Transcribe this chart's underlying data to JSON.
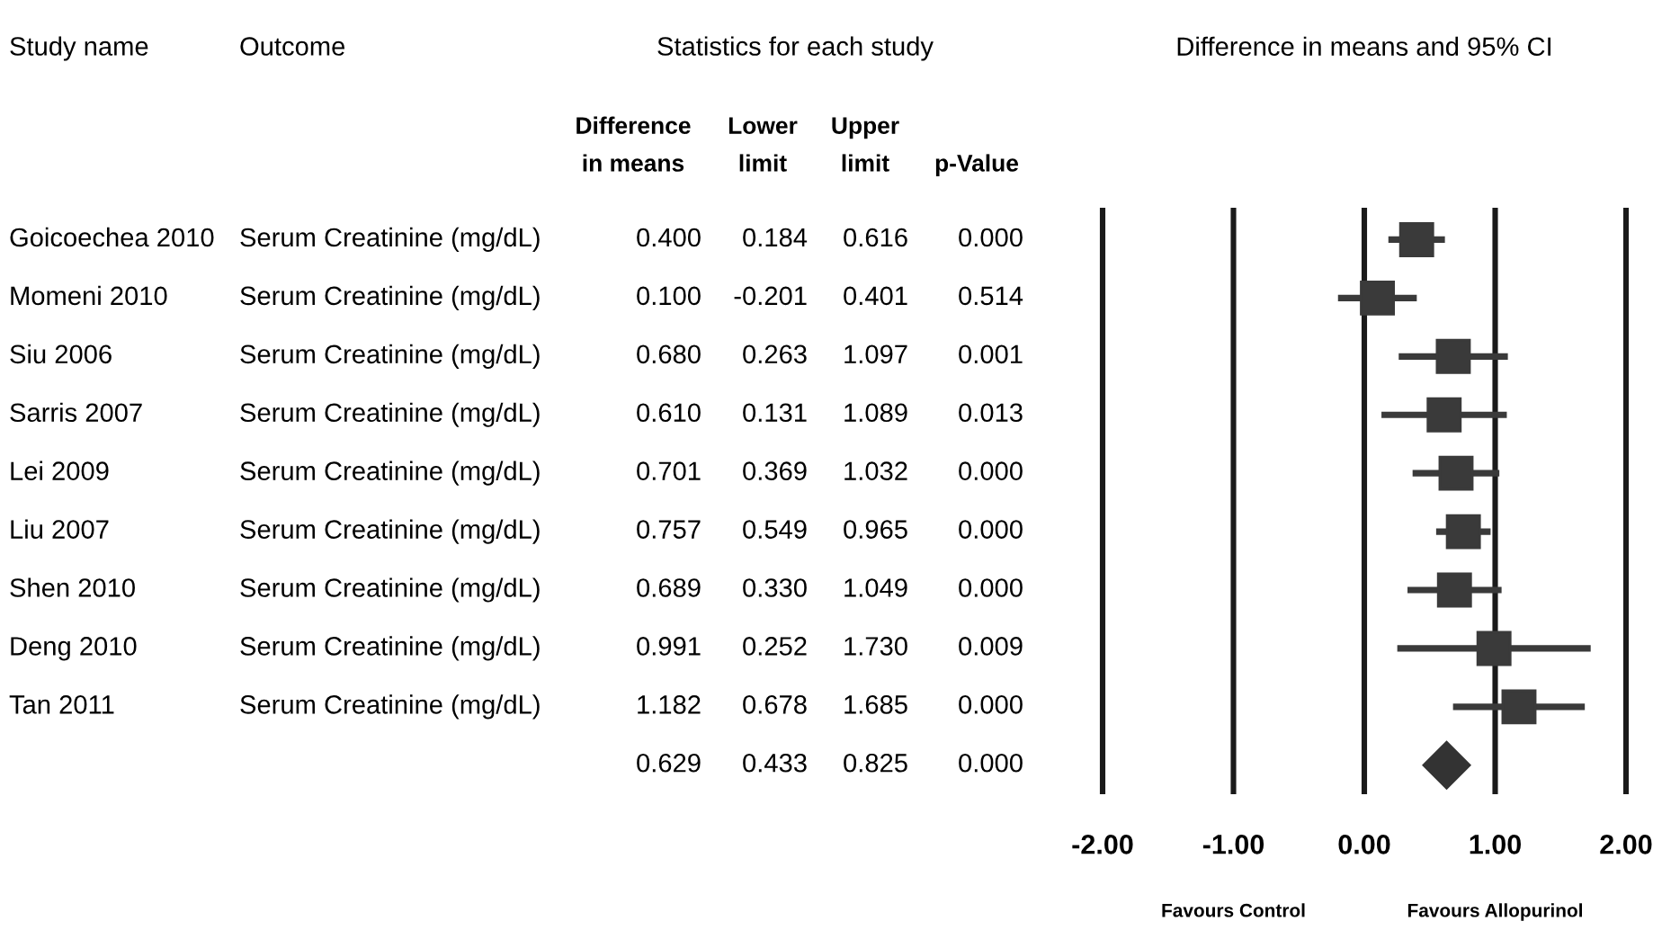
{
  "chart_data": [
    {
      "type": "other",
      "title": "Statistics for each study",
      "annotations": [
        "Study name",
        "Outcome"
      ],
      "y_categories": [
        "Goicoechea 2010",
        "Momeni 2010",
        "Siu 2006",
        "Sarris 2007",
        "Lei 2009",
        "Liu 2007",
        "Shen 2010",
        "Deng 2010",
        "Tan 2011",
        null
      ],
      "y2_categories": [
        "Serum Creatinine (mg/dL)",
        "Serum Creatinine (mg/dL)",
        "Serum Creatinine (mg/dL)",
        "Serum Creatinine (mg/dL)",
        "Serum Creatinine (mg/dL)",
        "Serum Creatinine (mg/dL)",
        "Serum Creatinine (mg/dL)",
        "Serum Creatinine (mg/dL)",
        "Serum Creatinine (mg/dL)",
        null
      ],
      "categories": [
        "Difference\nin means",
        "Lower\nlimit",
        "Upper\nlimit",
        "p-Value"
      ],
      "cell_labels": [
        [
          "0.400",
          "0.184",
          "0.616",
          "0.000"
        ],
        [
          "0.100",
          "-0.201",
          "0.401",
          "0.514"
        ],
        [
          "0.680",
          "0.263",
          "1.097",
          "0.001"
        ],
        [
          "0.610",
          "0.131",
          "1.089",
          "0.013"
        ],
        [
          "0.701",
          "0.369",
          "1.032",
          "0.000"
        ],
        [
          "0.757",
          "0.549",
          "0.965",
          "0.000"
        ],
        [
          "0.689",
          "0.330",
          "1.049",
          "0.000"
        ],
        [
          "0.991",
          "0.252",
          "1.730",
          "0.009"
        ],
        [
          "1.182",
          "0.678",
          "1.685",
          "0.000"
        ],
        [
          "0.629",
          "0.433",
          "0.825",
          "0.000"
        ]
      ]
    },
    {
      "type": "scatter",
      "orientation": "horizontal",
      "title": "Difference in means and 95% CI",
      "categories": [
        null,
        null,
        null,
        null,
        null,
        null,
        null,
        null,
        null,
        null
      ],
      "series": [
        {
          "marker": "square",
          "color": "#3a3a3a",
          "values": [
            0.4,
            0.1,
            0.68,
            0.61,
            0.701,
            0.757,
            0.689,
            0.991,
            1.182,
            null
          ],
          "errors": [
            [
              0.184,
              0.616
            ],
            [
              -0.201,
              0.401
            ],
            [
              0.263,
              1.097
            ],
            [
              0.131,
              1.089
            ],
            [
              0.369,
              1.032
            ],
            [
              0.549,
              0.965
            ],
            [
              0.33,
              1.049
            ],
            [
              0.252,
              1.73
            ],
            [
              0.678,
              1.685
            ],
            null
          ]
        },
        {
          "marker": "diamond",
          "color": "#333333",
          "values": [
            null,
            null,
            null,
            null,
            null,
            null,
            null,
            null,
            null,
            0.629
          ]
        }
      ],
      "annotations": [
        "Favours Control",
        "Favours Allopurinol"
      ],
      "xlim": [
        -2,
        2
      ],
      "xticks": [
        {
          "value": -2,
          "label": "-2.00"
        },
        {
          "value": -1,
          "label": "-1.00"
        },
        {
          "value": 0,
          "label": "0.00"
        },
        {
          "value": 1,
          "label": "1.00"
        },
        {
          "value": 2,
          "label": "2.00"
        }
      ],
      "grid": "x"
    }
  ]
}
